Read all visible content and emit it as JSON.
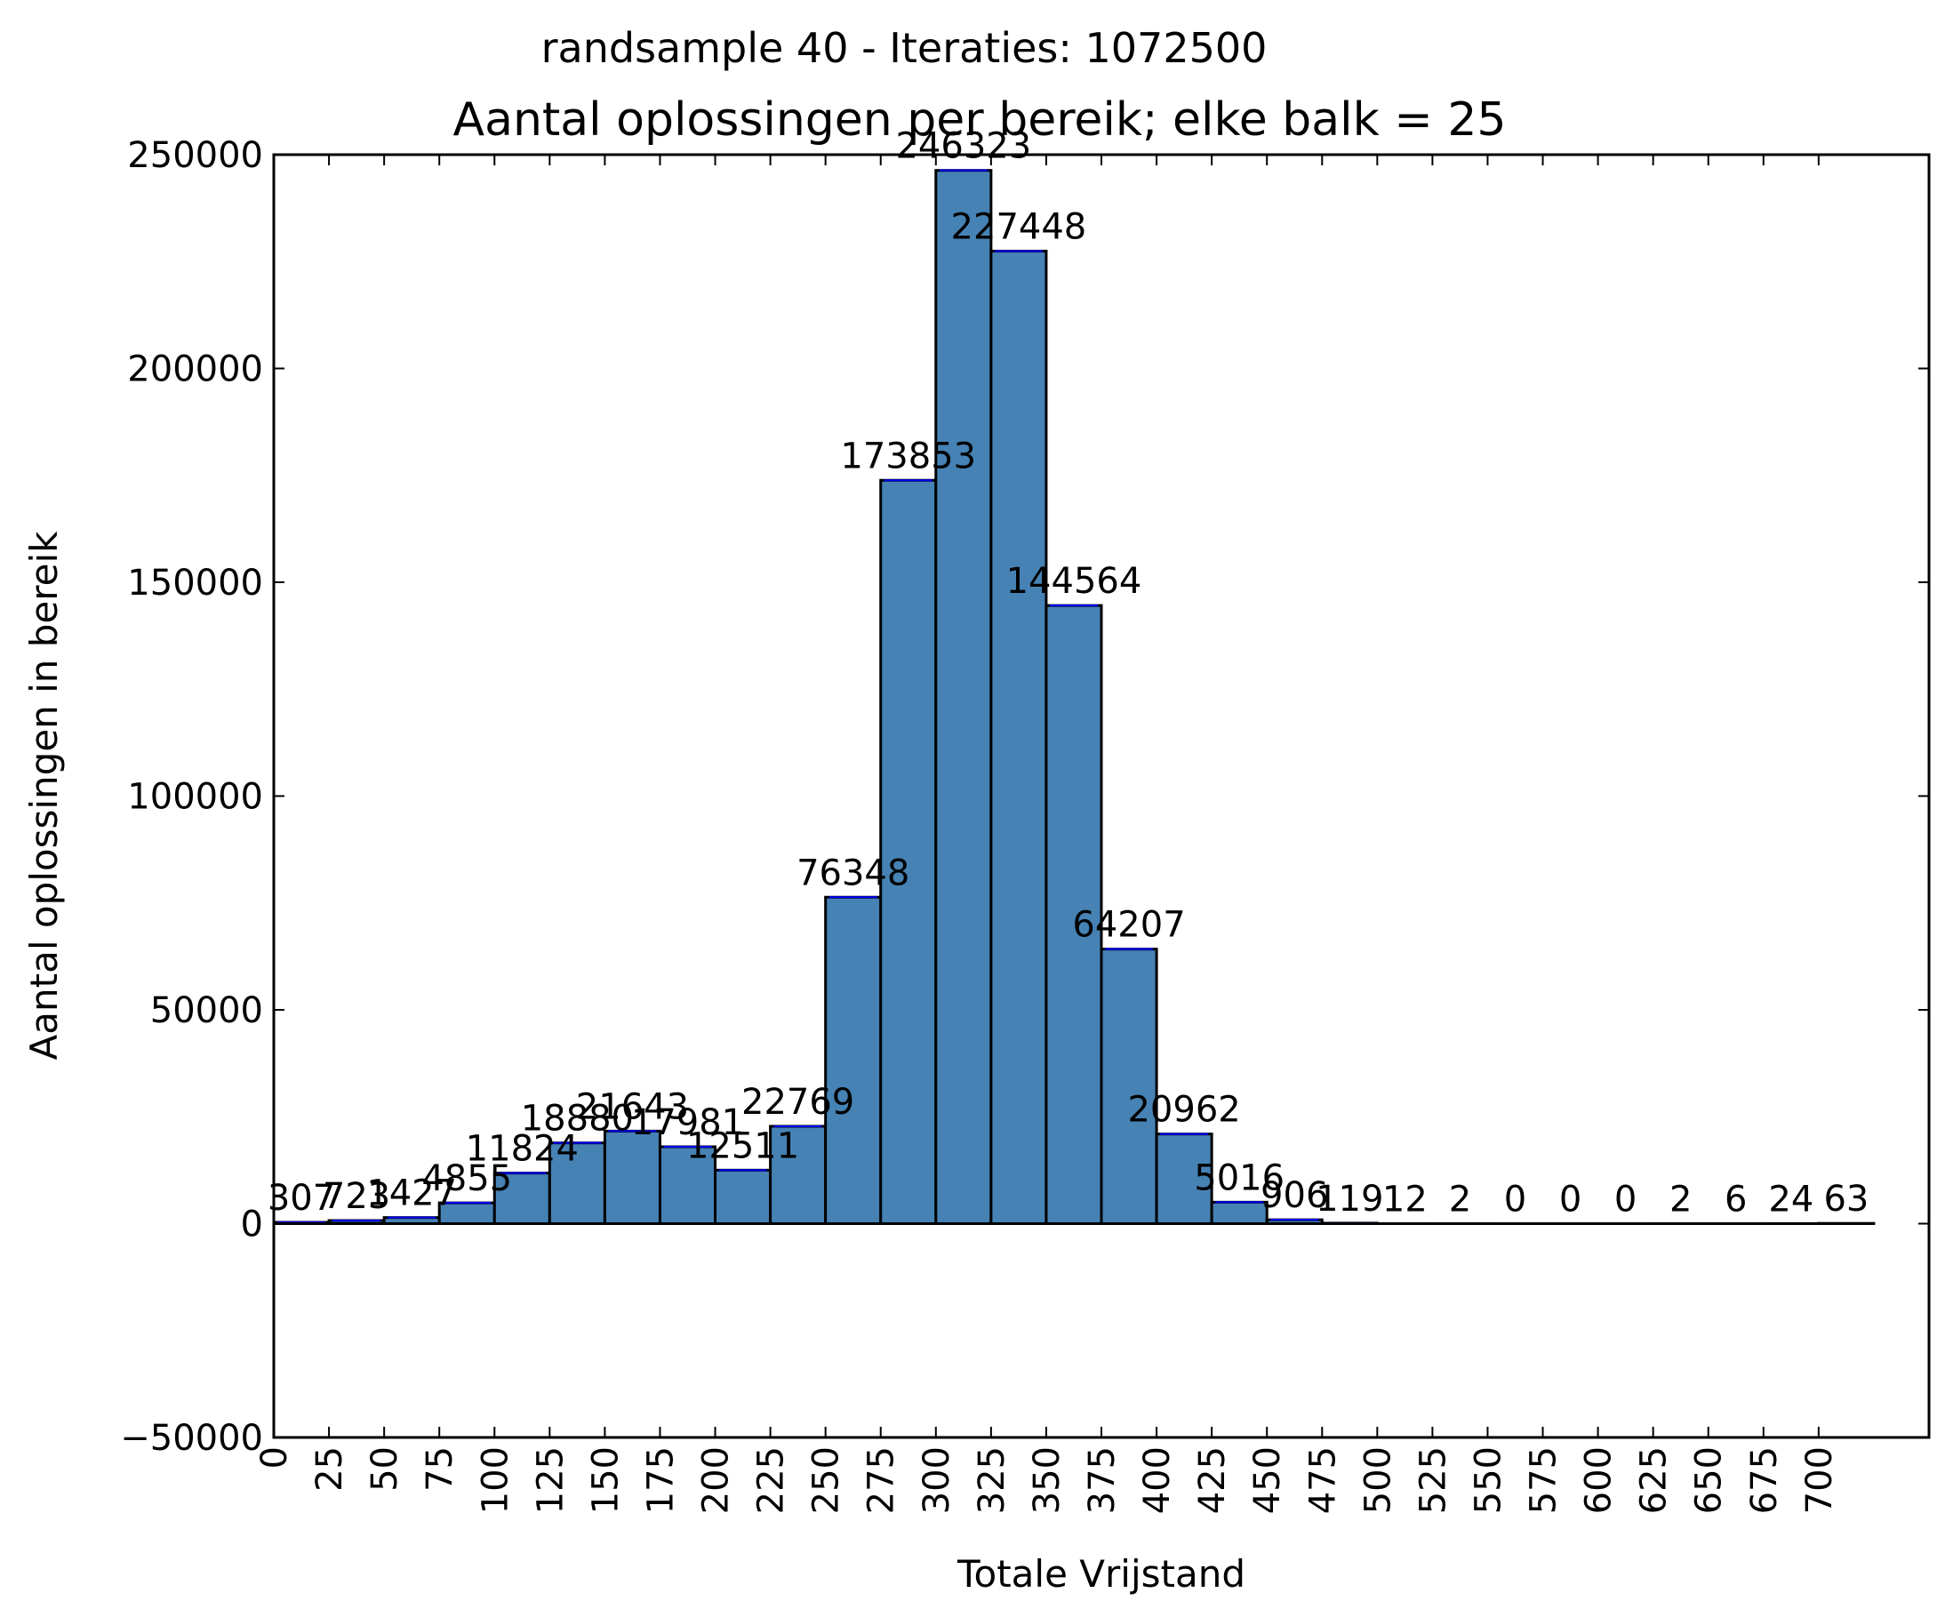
{
  "chart_data": {
    "type": "bar",
    "suptitle": "randsample 40 - Iteraties: 1072500",
    "title": "Aantal oplossingen per bereik; elke balk = 25",
    "xlabel": "Totale Vrijstand",
    "ylabel": "Aantal oplossingen in bereik",
    "bin_width": 25,
    "x": [
      0,
      25,
      50,
      75,
      100,
      125,
      150,
      175,
      200,
      225,
      250,
      275,
      300,
      325,
      350,
      375,
      400,
      425,
      450,
      475,
      500,
      525,
      550,
      575,
      600,
      625,
      650,
      675,
      700
    ],
    "values": [
      307,
      723,
      1427,
      4855,
      11824,
      18880,
      21643,
      17981,
      12511,
      22769,
      76348,
      173853,
      246323,
      227448,
      144564,
      64207,
      20962,
      5016,
      906,
      119,
      12,
      2,
      0,
      0,
      0,
      2,
      6,
      24,
      63
    ],
    "labels": [
      "307",
      "723",
      "1427",
      "4855",
      "11824",
      "18880",
      "21643",
      "17981",
      "12511",
      "22769",
      "76348",
      "173853",
      "246323",
      "227448",
      "144564",
      "64207",
      "20962",
      "5016",
      "906",
      "119",
      "12",
      "2",
      "0",
      "0",
      "0",
      "2",
      "6",
      "24",
      "63"
    ],
    "xticks": [
      "0",
      "25",
      "50",
      "75",
      "100",
      "125",
      "150",
      "175",
      "200",
      "225",
      "250",
      "275",
      "300",
      "325",
      "350",
      "375",
      "400",
      "425",
      "450",
      "475",
      "500",
      "525",
      "550",
      "575",
      "600",
      "625",
      "650",
      "675",
      "700"
    ],
    "xlim": [
      0,
      750
    ],
    "yticks": [
      "−50000",
      "0",
      "50000",
      "100000",
      "150000",
      "200000",
      "250000"
    ],
    "yticks_values": [
      -50000,
      0,
      50000,
      100000,
      150000,
      200000,
      250000
    ],
    "ylim": [
      -50000,
      250000
    ],
    "grid": false,
    "legend": "none",
    "bar_color": "#4682b4",
    "edge_color": "#000000",
    "mean_line_color": "#0000ff"
  }
}
